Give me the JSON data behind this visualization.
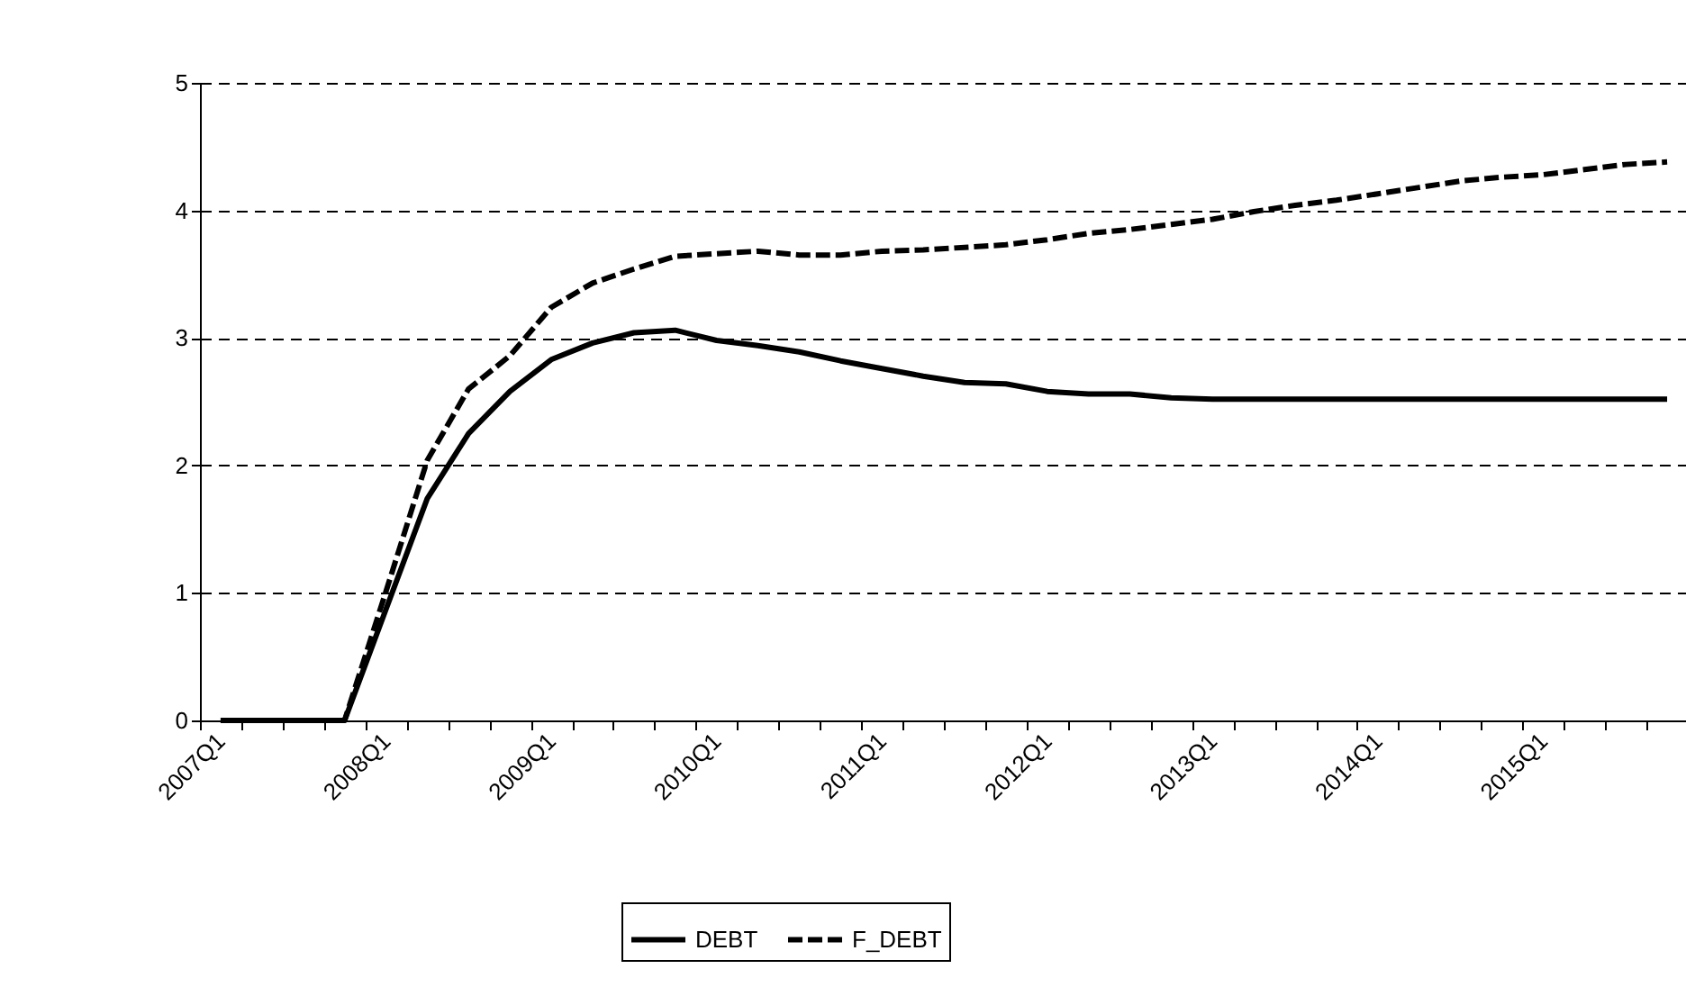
{
  "chart_data": {
    "type": "line",
    "categories": [
      "2007Q1",
      null,
      null,
      null,
      "2008Q1",
      null,
      null,
      null,
      "2009Q1",
      null,
      null,
      null,
      "2010Q1",
      null,
      null,
      null,
      "2011Q1",
      null,
      null,
      null,
      "2012Q1",
      null,
      null,
      null,
      "2013Q1",
      null,
      null,
      null,
      "2014Q1",
      null,
      null,
      null,
      "2015Q1",
      null,
      null,
      null
    ],
    "series": [
      {
        "name": "DEBT",
        "color": "#000000",
        "line_style": "solid",
        "values": [
          0,
          0,
          0,
          0,
          0.87,
          1.74,
          2.25,
          2.58,
          2.83,
          2.96,
          3.04,
          3.06,
          2.98,
          2.94,
          2.89,
          2.82,
          2.76,
          2.7,
          2.65,
          2.64,
          2.58,
          2.56,
          2.56,
          2.53,
          2.52,
          2.52,
          2.52,
          2.52,
          2.52,
          2.52,
          2.52,
          2.52,
          2.52,
          2.52,
          2.52,
          2.52
        ]
      },
      {
        "name": "F_DEBT",
        "color": "#000000",
        "line_style": "dashed",
        "values": [
          0,
          0,
          0,
          0,
          1.01,
          2.04,
          2.6,
          2.86,
          3.24,
          3.43,
          3.54,
          3.64,
          3.66,
          3.68,
          3.65,
          3.65,
          3.68,
          3.69,
          3.71,
          3.73,
          3.77,
          3.82,
          3.85,
          3.89,
          3.93,
          3.99,
          4.04,
          4.08,
          4.13,
          4.18,
          4.23,
          4.26,
          4.28,
          4.32,
          4.36,
          4.38
        ]
      }
    ],
    "ylim": [
      0,
      5
    ],
    "yticks": [
      0,
      1,
      2,
      3,
      4,
      5
    ],
    "grid": "y",
    "legend": "bottom"
  }
}
